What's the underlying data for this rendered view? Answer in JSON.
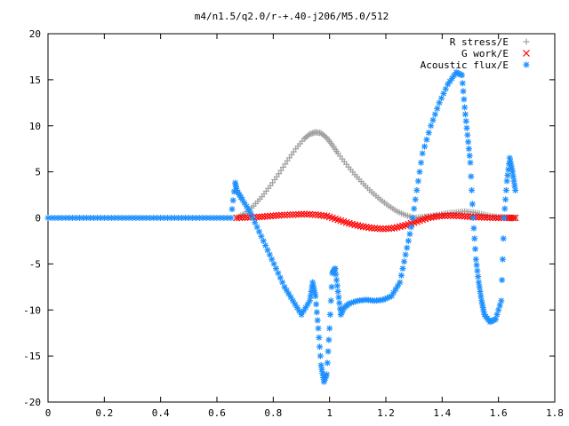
{
  "chart_data": {
    "type": "scatter",
    "title": "m4/n1.5/q2.0/r-+.40-j206/M5.0/512",
    "xlabel": "",
    "ylabel": "",
    "xlim": [
      0,
      1.8
    ],
    "ylim": [
      -20,
      20
    ],
    "xticks": [
      "0",
      "0.2",
      "0.4",
      "0.6",
      "0.8",
      "1",
      "1.2",
      "1.4",
      "1.6",
      "1.8"
    ],
    "yticks": [
      "20",
      "15",
      "10",
      "5",
      "0",
      "-5",
      "-10",
      "-15",
      "-20"
    ],
    "grid": false,
    "legend_position": "top-right",
    "series": [
      {
        "name": "R stress/E",
        "marker": "+",
        "color": "#a0a0a0",
        "x": [
          0.67,
          0.7,
          0.73,
          0.76,
          0.79,
          0.82,
          0.85,
          0.88,
          0.91,
          0.93,
          0.95,
          0.97,
          0.99,
          1.01,
          1.03,
          1.06,
          1.09,
          1.12,
          1.15,
          1.18,
          1.21,
          1.24,
          1.27,
          1.3,
          1.33,
          1.36,
          1.39,
          1.42,
          1.45,
          1.48,
          1.51,
          1.54,
          1.57,
          1.6,
          1.63,
          1.66
        ],
        "y": [
          0.0,
          0.5,
          1.3,
          2.3,
          3.5,
          4.8,
          6.2,
          7.5,
          8.6,
          9.1,
          9.3,
          9.2,
          8.7,
          7.9,
          7.0,
          5.8,
          4.7,
          3.7,
          2.8,
          2.0,
          1.3,
          0.7,
          0.3,
          0.0,
          0.1,
          0.2,
          0.35,
          0.5,
          0.6,
          0.7,
          0.6,
          0.4,
          0.2,
          0.1,
          0.05,
          0.0
        ]
      },
      {
        "name": "G work/E",
        "marker": "x",
        "color": "#ff0000",
        "x": [
          0.67,
          0.71,
          0.75,
          0.79,
          0.83,
          0.87,
          0.91,
          0.95,
          0.99,
          1.03,
          1.07,
          1.11,
          1.15,
          1.19,
          1.23,
          1.27,
          1.31,
          1.35,
          1.39,
          1.43,
          1.47,
          1.51,
          1.55,
          1.59,
          1.63,
          1.66
        ],
        "y": [
          0.0,
          0.05,
          0.1,
          0.2,
          0.3,
          0.35,
          0.4,
          0.35,
          0.2,
          -0.2,
          -0.6,
          -0.9,
          -1.1,
          -1.2,
          -1.1,
          -0.8,
          -0.4,
          0.0,
          0.2,
          0.25,
          0.2,
          0.1,
          0.05,
          0.0,
          0.0,
          0.0
        ]
      },
      {
        "name": "Acoustic flux/E",
        "marker": "*",
        "color": "#1e90ff",
        "x": [
          0.0,
          0.05,
          0.1,
          0.15,
          0.2,
          0.25,
          0.3,
          0.35,
          0.4,
          0.45,
          0.5,
          0.55,
          0.6,
          0.65,
          0.665,
          0.67,
          0.69,
          0.72,
          0.75,
          0.78,
          0.81,
          0.84,
          0.87,
          0.9,
          0.93,
          0.94,
          0.95,
          0.96,
          0.97,
          0.98,
          0.99,
          1.0,
          1.01,
          1.02,
          1.03,
          1.04,
          1.05,
          1.07,
          1.1,
          1.13,
          1.16,
          1.19,
          1.22,
          1.25,
          1.27,
          1.29,
          1.31,
          1.33,
          1.36,
          1.39,
          1.42,
          1.45,
          1.47,
          1.48,
          1.49,
          1.5,
          1.51,
          1.52,
          1.53,
          1.54,
          1.55,
          1.57,
          1.59,
          1.61,
          1.62,
          1.63,
          1.64,
          1.65,
          1.66
        ],
        "y": [
          0.0,
          0.0,
          0.0,
          0.0,
          0.0,
          0.0,
          0.0,
          0.0,
          0.0,
          0.0,
          0.0,
          0.0,
          0.0,
          0.0,
          3.8,
          3.0,
          2.0,
          0.5,
          -1.5,
          -3.5,
          -5.5,
          -7.5,
          -9.0,
          -10.5,
          -9.0,
          -7.0,
          -8.5,
          -12.0,
          -16.0,
          -17.8,
          -17.0,
          -12.0,
          -6.0,
          -5.5,
          -8.0,
          -10.5,
          -9.8,
          -9.3,
          -9.0,
          -8.9,
          -9.0,
          -8.9,
          -8.5,
          -7.0,
          -4.0,
          -1.0,
          3.0,
          7.0,
          10.0,
          12.5,
          14.5,
          15.8,
          15.5,
          12.0,
          9.0,
          6.0,
          0.0,
          -4.5,
          -7.0,
          -9.0,
          -10.5,
          -11.3,
          -11.0,
          -9.0,
          0.0,
          4.0,
          6.5,
          5.0,
          3.0
        ]
      }
    ]
  }
}
